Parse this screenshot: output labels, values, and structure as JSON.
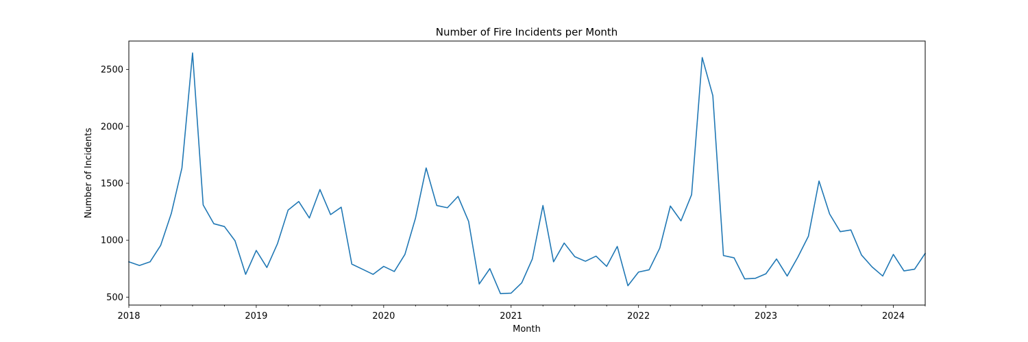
{
  "chart_data": {
    "type": "line",
    "title": "Number of Fire Incidents per Month",
    "xlabel": "Month",
    "ylabel": "Number of Incidents",
    "x_start": "2018-01",
    "x_end": "2024-04",
    "xlim": [
      "2018-01",
      "2024-04"
    ],
    "ylim": [
      430,
      2750
    ],
    "xticks": [
      "2018",
      "2019",
      "2020",
      "2021",
      "2022",
      "2023",
      "2024"
    ],
    "yticks": [
      500,
      1000,
      1500,
      2000,
      2500
    ],
    "grid": false,
    "legend": "none",
    "line_color": "#1f77b4",
    "series": [
      {
        "x": [
          "2018-01",
          "2018-02",
          "2018-03",
          "2018-04",
          "2018-05",
          "2018-06",
          "2018-07",
          "2018-08",
          "2018-09",
          "2018-10",
          "2018-11",
          "2018-12",
          "2019-01",
          "2019-02",
          "2019-03",
          "2019-04",
          "2019-05",
          "2019-06",
          "2019-07",
          "2019-08",
          "2019-09",
          "2019-10",
          "2019-11",
          "2019-12",
          "2020-01",
          "2020-02",
          "2020-03",
          "2020-04",
          "2020-05",
          "2020-06",
          "2020-07",
          "2020-08",
          "2020-09",
          "2020-10",
          "2020-11",
          "2020-12",
          "2021-01",
          "2021-02",
          "2021-03",
          "2021-04",
          "2021-05",
          "2021-06",
          "2021-07",
          "2021-08",
          "2021-09",
          "2021-10",
          "2021-11",
          "2021-12",
          "2022-01",
          "2022-02",
          "2022-03",
          "2022-04",
          "2022-05",
          "2022-06",
          "2022-07",
          "2022-08",
          "2022-09",
          "2022-10",
          "2022-11",
          "2022-12",
          "2023-01",
          "2023-02",
          "2023-03",
          "2023-04",
          "2023-05",
          "2023-06",
          "2023-07",
          "2023-08",
          "2023-09",
          "2023-10",
          "2023-11",
          "2023-12",
          "2024-01",
          "2024-02",
          "2024-03",
          "2024-04"
        ],
        "values": [
          810,
          778,
          810,
          955,
          1235,
          1635,
          2645,
          1310,
          1145,
          1120,
          995,
          700,
          910,
          760,
          970,
          1265,
          1340,
          1195,
          1445,
          1225,
          1290,
          790,
          745,
          700,
          770,
          725,
          875,
          1195,
          1635,
          1305,
          1285,
          1385,
          1165,
          615,
          750,
          530,
          535,
          625,
          835,
          1305,
          810,
          975,
          855,
          815,
          860,
          770,
          945,
          600,
          720,
          740,
          930,
          1300,
          1170,
          1400,
          2605,
          2270,
          865,
          845,
          660,
          665,
          705,
          835,
          685,
          850,
          1035,
          1520,
          1230,
          1075,
          1090,
          870,
          765,
          685,
          875,
          730,
          745,
          885
        ]
      }
    ]
  }
}
